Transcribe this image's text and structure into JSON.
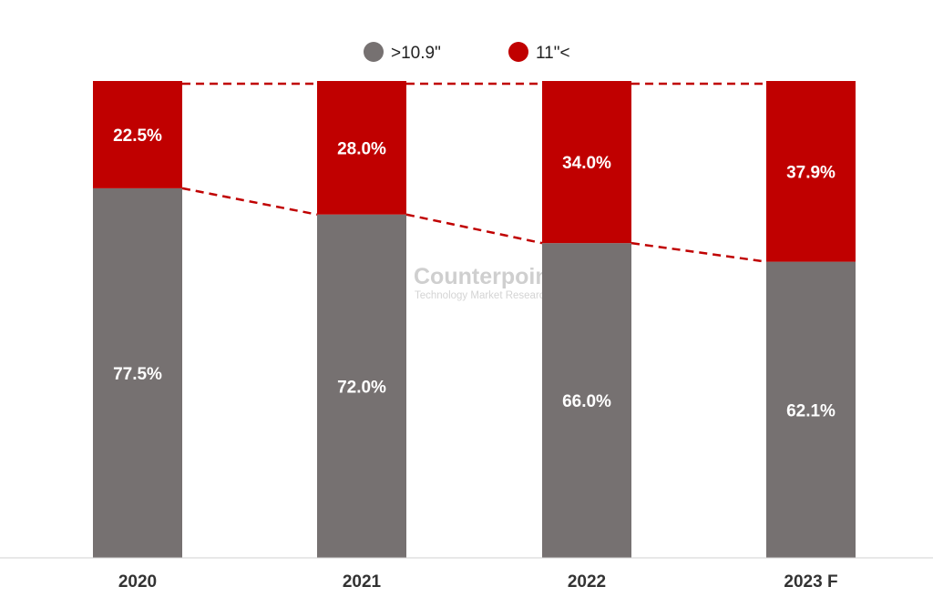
{
  "chart_data": {
    "type": "bar",
    "stacked": true,
    "percent_stacked": true,
    "categories": [
      "2020",
      "2021",
      "2022",
      "2023 F"
    ],
    "series": [
      {
        "name": ">10.9\"",
        "values": [
          77.5,
          72.0,
          66.0,
          62.1
        ],
        "color": "#767171"
      },
      {
        "name": "11\"<",
        "values": [
          22.5,
          28.0,
          34.0,
          37.9
        ],
        "color": "#c00000"
      }
    ],
    "data_labels": [
      [
        "77.5%",
        "72.0%",
        "66.0%",
        "62.1%"
      ],
      [
        "22.5%",
        "28.0%",
        "34.0%",
        "37.9%"
      ]
    ],
    "ylim": [
      0,
      100
    ],
    "grid": false,
    "legend_position": "top-center",
    "connector_lines": "dashed",
    "connector_color": "#c00000"
  },
  "watermark": {
    "title": "Counterpoint",
    "subtitle": "Technology Market Research"
  }
}
